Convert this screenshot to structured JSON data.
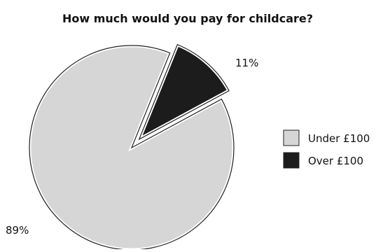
{
  "chart_data": {
    "type": "pie",
    "title": "How much would you pay for childcare?",
    "categories": [
      "Under £100",
      "Over £100"
    ],
    "values": [
      89,
      11
    ],
    "value_labels": [
      "89%",
      "11%"
    ],
    "exploded": [
      false,
      true
    ],
    "colors": [
      "#d6d6d6",
      "#1c1c1c"
    ],
    "legend_position": "right"
  }
}
